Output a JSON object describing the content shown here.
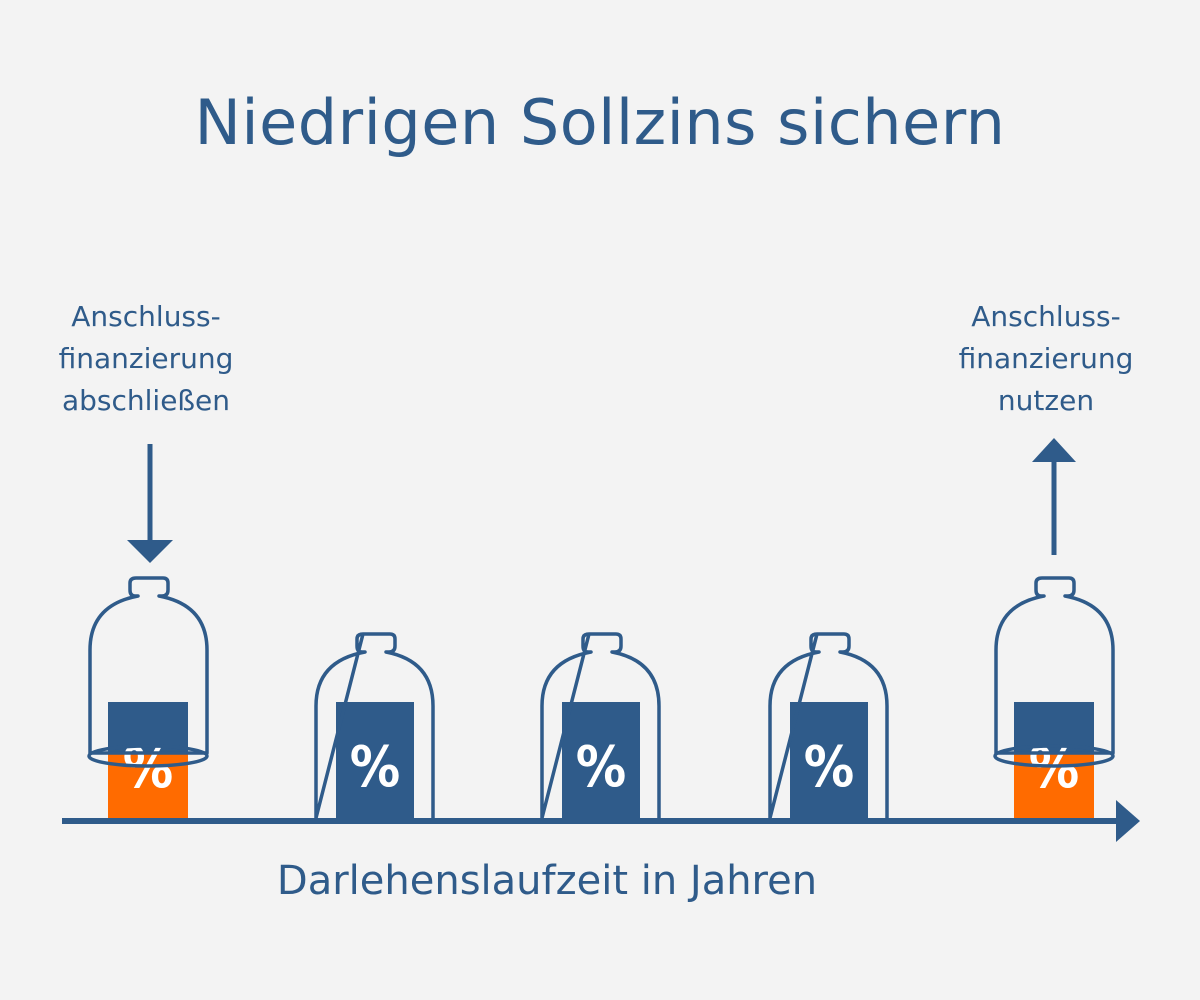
{
  "title": "Niedrigen Sollzins sichern",
  "left_note": [
    "Anschluss-",
    "finanzierung",
    "abschließen"
  ],
  "right_note": [
    "Anschluss-",
    "finanzierung",
    "nutzen"
  ],
  "axis_label": "Darlehenslaufzeit in Jahren",
  "percent_symbol": "%",
  "jars": [
    {
      "lid": "raised",
      "fill": "orange"
    },
    {
      "lid": "closed",
      "fill": "blue"
    },
    {
      "lid": "closed",
      "fill": "blue"
    },
    {
      "lid": "closed",
      "fill": "blue"
    },
    {
      "lid": "raised",
      "fill": "orange"
    }
  ],
  "colors": {
    "primary": "#2f5b8a",
    "accent": "#ff6b00",
    "background": "#f3f3f3"
  }
}
